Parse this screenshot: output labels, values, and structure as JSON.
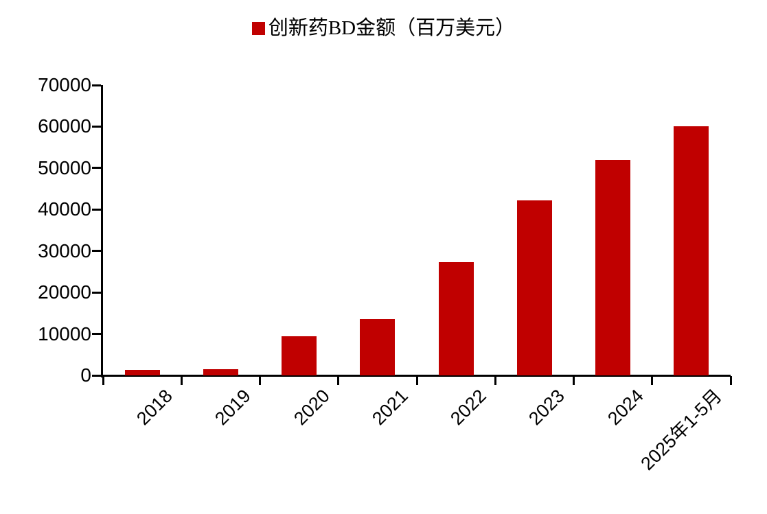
{
  "chart_data": {
    "type": "bar",
    "title": "",
    "legend": "创新药BD金额（百万美元）",
    "legend_position": "top-center",
    "categories": [
      "2018",
      "2019",
      "2020",
      "2021",
      "2022",
      "2023",
      "2024",
      "2025年1-5月"
    ],
    "values": [
      1400,
      1500,
      9400,
      13600,
      27300,
      42200,
      52000,
      60000
    ],
    "series_name": "创新药BD金额（百万美元）",
    "xlabel": "",
    "ylabel": "",
    "ylim": [
      0,
      70000
    ],
    "ytick_step": 10000,
    "ytick_labels": [
      "0",
      "10000",
      "20000",
      "30000",
      "40000",
      "50000",
      "60000",
      "70000"
    ],
    "x_label_rotation_deg": 45,
    "grid": "off",
    "bar_color": "#c00000",
    "axis_color": "#000000",
    "text_color": "#000000",
    "background_color": "#ffffff"
  }
}
